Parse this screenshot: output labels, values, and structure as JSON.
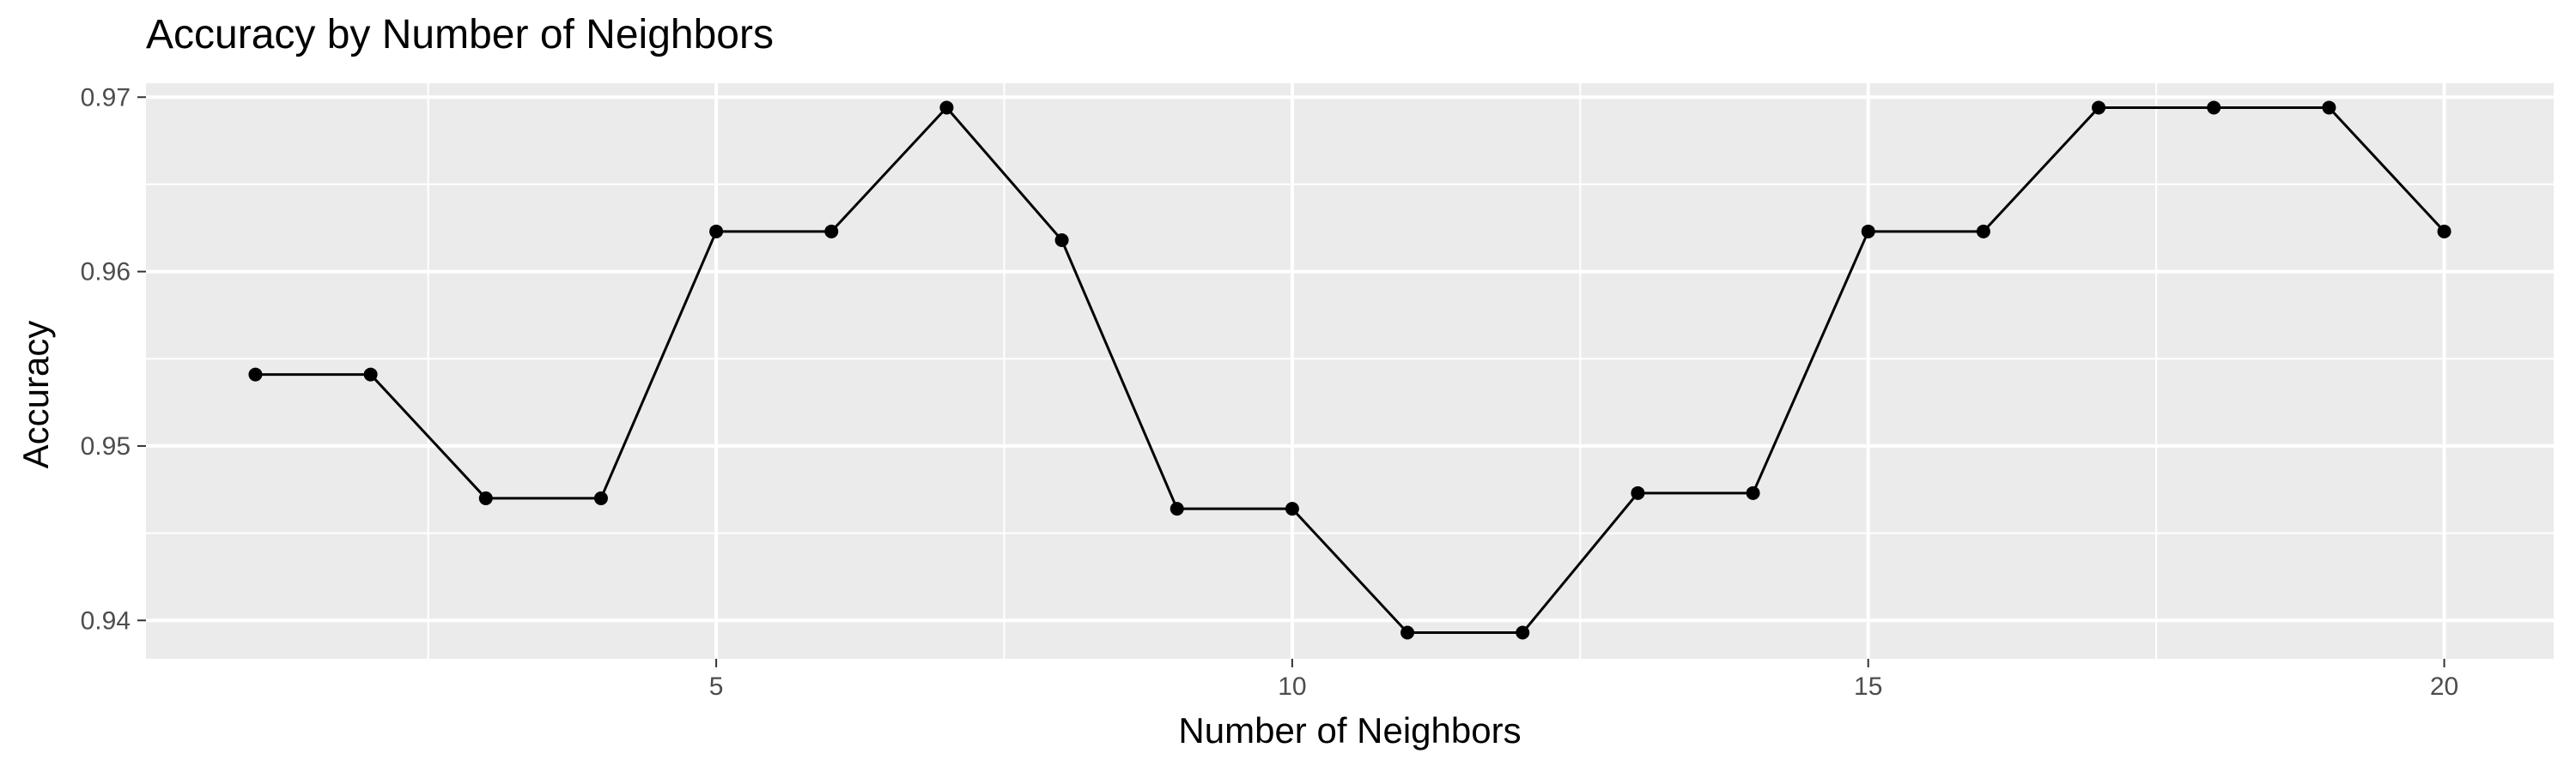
{
  "chart_data": {
    "type": "line",
    "title": "Accuracy by Number of Neighbors",
    "xlabel": "Number of Neighbors",
    "ylabel": "Accuracy",
    "xlim": [
      0.05,
      20.95
    ],
    "ylim": [
      0.9378,
      0.9708
    ],
    "x_ticks": [
      5,
      10,
      15,
      20
    ],
    "y_ticks": [
      0.94,
      0.95,
      0.96,
      0.97
    ],
    "x_tick_labels": [
      "5",
      "10",
      "15",
      "20"
    ],
    "y_tick_labels": [
      "0.94",
      "0.95",
      "0.96",
      "0.97"
    ],
    "grid": true,
    "legend": "none",
    "colors": {
      "panel": "#ebebeb",
      "grid": "#ffffff",
      "line": "#000000",
      "point": "#000000",
      "tick": "#333333",
      "label": "#4d4d4d"
    },
    "series": [
      {
        "x": [
          1,
          2,
          3,
          4,
          5,
          6,
          7,
          8,
          9,
          10,
          11,
          12,
          13,
          14,
          15,
          16,
          17,
          18,
          19,
          20
        ],
        "y": [
          0.9541,
          0.9541,
          0.947,
          0.947,
          0.9623,
          0.9623,
          0.9694,
          0.9618,
          0.9464,
          0.9464,
          0.9393,
          0.9393,
          0.9473,
          0.9473,
          0.9623,
          0.9623,
          0.9694,
          0.9694,
          0.9694,
          0.9623
        ]
      }
    ]
  }
}
